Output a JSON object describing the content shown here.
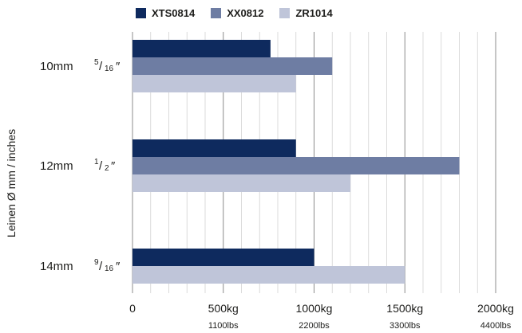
{
  "chart_data": {
    "type": "bar",
    "orientation": "horizontal",
    "ylabel": "Leinen Ø mm / inches",
    "categories": [
      {
        "mm": "10mm",
        "inch_num": "5",
        "inch_den": "16",
        "inch_whole": ""
      },
      {
        "mm": "12mm",
        "inch_num": "1",
        "inch_den": "2",
        "inch_whole": ""
      },
      {
        "mm": "14mm",
        "inch_num": "9",
        "inch_den": "16",
        "inch_whole": ""
      }
    ],
    "series": [
      {
        "name": "XTS0814",
        "color": "#0e2a5e",
        "values": [
          760,
          900,
          1000
        ]
      },
      {
        "name": "XX0812",
        "color": "#6e7da3",
        "values": [
          1100,
          1800,
          null
        ]
      },
      {
        "name": "ZR1014",
        "color": "#bfc5d9",
        "values": [
          900,
          1200,
          1500
        ]
      }
    ],
    "xlim": [
      0,
      2000
    ],
    "xticks": [
      {
        "value": 0,
        "label": "0",
        "sub": ""
      },
      {
        "value": 500,
        "label": "500kg",
        "sub": "1100lbs"
      },
      {
        "value": 1000,
        "label": "1000kg",
        "sub": "2200lbs"
      },
      {
        "value": 1500,
        "label": "1500kg",
        "sub": "3300lbs"
      },
      {
        "value": 2000,
        "label": "2000kg",
        "sub": "4400lbs"
      }
    ],
    "minor_gridlines": true,
    "legend_position": "top"
  }
}
